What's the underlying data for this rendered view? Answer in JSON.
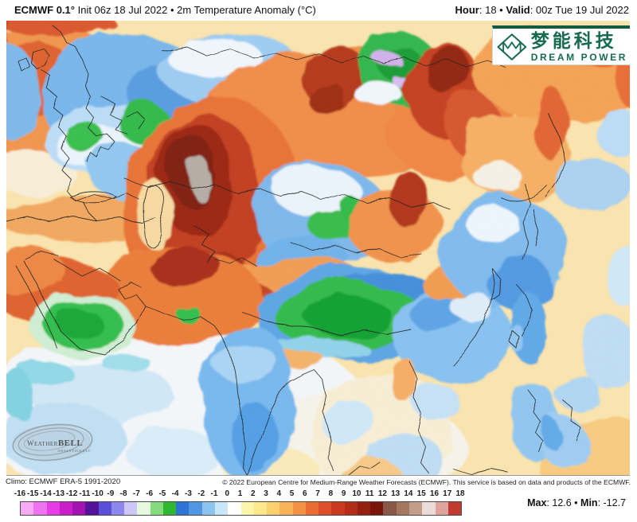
{
  "header": {
    "title_bold": "ECMWF 0.1°",
    "title_rest": " Init 06z 18 Jul 2022 • 2m Temperature Anomaly (°C)",
    "hour_label": "Hour",
    "hour_value": ": 18",
    "separator": " • ",
    "valid_label": "Valid",
    "valid_value": ": 00z Tue 19 Jul 2022"
  },
  "branding": {
    "logo_cn": "梦能科技",
    "logo_en": "DREAM POWER",
    "logo_color": "#176b4d",
    "logo_icon": "diamond-monogram-icon"
  },
  "watermark": {
    "name_caps": "Weather",
    "name_bold": "BELL",
    "subtext": "Analytics LLC"
  },
  "footer": {
    "climo": "Climo: ECMWF ERA-5 1991-2020",
    "copyright": "© 2022 European Centre for Medium-Range Weather Forecasts (ECMWF). This service is based on data and products of the ECMWF."
  },
  "extremes": {
    "max_label": "Max",
    "max_value": ": 12.6",
    "separator": " • ",
    "min_label": "Min",
    "min_value": ": -12.7"
  },
  "colorbar": {
    "unit": "°C",
    "ticks": [
      -16,
      -15,
      -14,
      -13,
      -12,
      -11,
      -10,
      -9,
      -8,
      -7,
      -6,
      -5,
      -4,
      -3,
      -2,
      -1,
      0,
      1,
      2,
      3,
      4,
      5,
      6,
      7,
      8,
      9,
      10,
      11,
      12,
      13,
      14,
      15,
      16,
      17,
      18
    ],
    "segment_colors": [
      "#f6aaf6",
      "#ef72ef",
      "#e53ce5",
      "#ca1eca",
      "#a312b0",
      "#521299",
      "#5a50d8",
      "#8d86ec",
      "#cbc8f7",
      "#e6f8e0",
      "#86da7e",
      "#30b830",
      "#2e74d4",
      "#5096e2",
      "#8cc3ef",
      "#c9e5f8",
      "#ffffff",
      "#fdf5ae",
      "#fde98c",
      "#fcd06e",
      "#f9b357",
      "#f39242",
      "#ea6c33",
      "#dd4f28",
      "#cb3a1f",
      "#b22c17",
      "#951f10",
      "#7a150b",
      "#8a5848",
      "#a5775f",
      "#c29d89",
      "#eadcd6",
      "#dfa49e",
      "#c23b30"
    ],
    "over_max_color": "#b3aba1"
  }
}
